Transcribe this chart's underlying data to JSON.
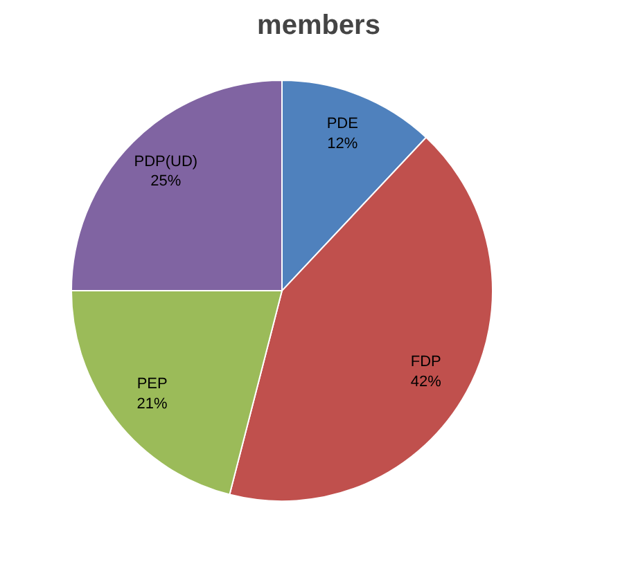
{
  "chart_data": {
    "type": "pie",
    "title": "members",
    "categories": [
      "PDE",
      "FDP",
      "PEP",
      "PDP(UD)"
    ],
    "values": [
      12,
      42,
      21,
      25
    ],
    "colors": [
      "#4f81bd",
      "#c0504d",
      "#9bbb59",
      "#8064a2"
    ],
    "value_labels": [
      "12%",
      "42%",
      "21%",
      "25%"
    ]
  }
}
